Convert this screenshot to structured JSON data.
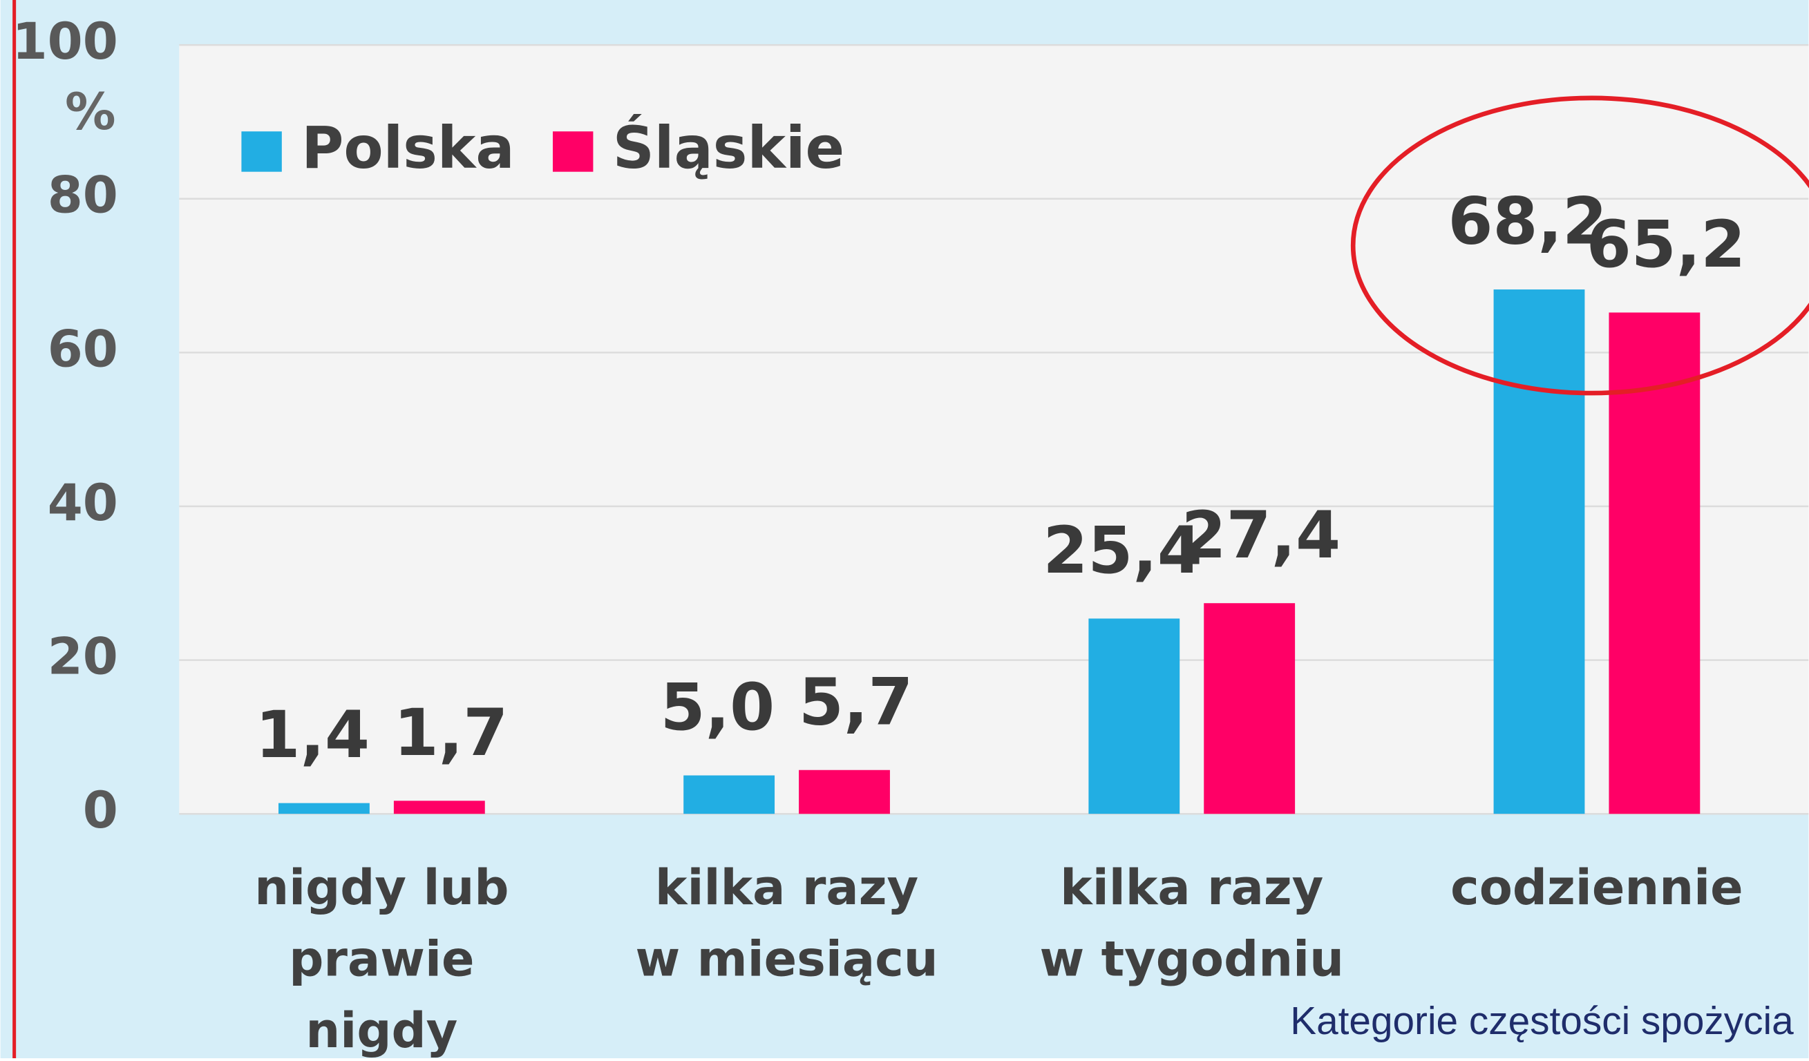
{
  "chart_data": {
    "type": "bar",
    "categories": [
      [
        "nigdy lub",
        "prawie",
        "nigdy"
      ],
      [
        "kilka razy",
        "w miesiącu"
      ],
      [
        "kilka razy",
        "w tygodniu"
      ],
      [
        "codziennie"
      ]
    ],
    "series": [
      {
        "name": "Polska",
        "color": "#22aee3",
        "values": [
          1.4,
          5.0,
          25.4,
          68.2
        ],
        "value_labels": [
          "1,4",
          "5,0",
          "25,4",
          "68,2"
        ]
      },
      {
        "name": "Śląskie",
        "color": "#ff0066",
        "values": [
          1.7,
          5.7,
          27.4,
          65.2
        ],
        "value_labels": [
          "1,7",
          "5,7",
          "27,4",
          "65,2"
        ]
      }
    ],
    "y_label": "%",
    "x_label": "Kategorie częstości spożycia",
    "ylim": [
      0,
      100
    ],
    "yticks": [
      0,
      20,
      40,
      60,
      80,
      100
    ],
    "grid": true,
    "legend": "top-left"
  }
}
